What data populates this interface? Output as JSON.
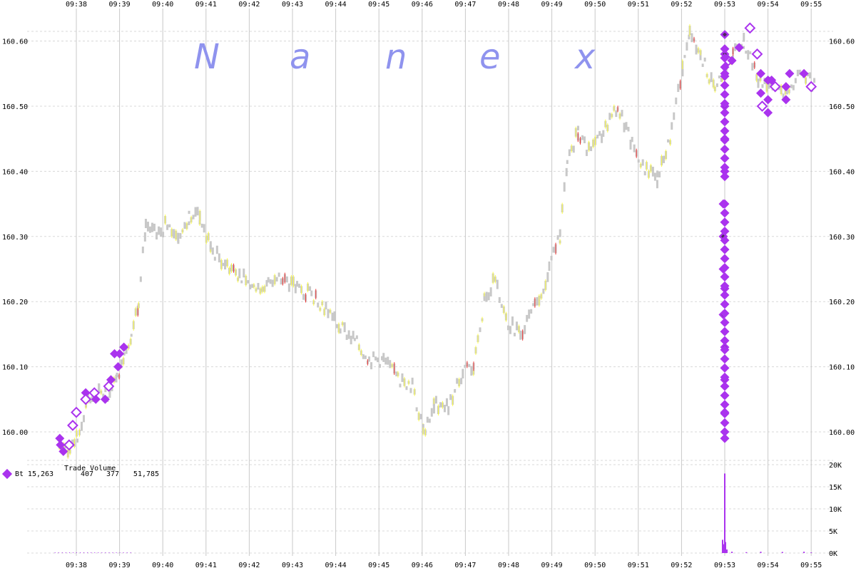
{
  "watermark": {
    "letters": [
      "N",
      "a",
      "n",
      "e",
      "x"
    ]
  },
  "legend": {
    "exchange": "Bt",
    "trade_volume_label": "Trade Volume",
    "values": [
      "15,263",
      "407",
      "377",
      "51,785"
    ]
  },
  "colors": {
    "marker_fill": "#aa33ee",
    "marker_dark": "#4a2a5a",
    "price_bar": "#c8c8c8",
    "price_tick_up": "#ffff44",
    "price_tick_down": "#ee3333",
    "watermark": "#8f93ee",
    "grid_vertical": "#c8c8c8",
    "grid_horizontal": "#d8d8d8"
  },
  "chart_data": {
    "type": "line",
    "title": "",
    "xlabel": "",
    "ylabel": "",
    "x_ticks": [
      "09:38",
      "09:39",
      "09:40",
      "09:41",
      "09:42",
      "09:43",
      "09:44",
      "09:45",
      "09:46",
      "09:47",
      "09:48",
      "09:49",
      "09:50",
      "09:51",
      "09:52",
      "09:53",
      "09:54",
      "09:55"
    ],
    "y_ticks": [
      "160.00",
      "160.10",
      "160.20",
      "160.30",
      "160.40",
      "160.50",
      "160.60"
    ],
    "y_range": [
      159.97,
      160.63
    ],
    "volume_ticks": [
      "0K",
      "5K",
      "10K",
      "15K",
      "20K"
    ],
    "volume_range": [
      0,
      20000
    ],
    "grid": true,
    "series": [
      {
        "kind": "price",
        "points": [
          [
            "09:37:35",
            159.98
          ],
          [
            "09:37:50",
            159.97
          ],
          [
            "09:38:00",
            159.99
          ],
          [
            "09:38:15",
            160.05
          ],
          [
            "09:38:30",
            160.06
          ],
          [
            "09:38:45",
            160.06
          ],
          [
            "09:38:55",
            160.08
          ],
          [
            "09:39:05",
            160.12
          ],
          [
            "09:39:15",
            160.15
          ],
          [
            "09:39:25",
            160.2
          ],
          [
            "09:39:35",
            160.32
          ],
          [
            "09:39:50",
            160.3
          ],
          [
            "09:40:05",
            160.32
          ],
          [
            "09:40:20",
            160.3
          ],
          [
            "09:40:35",
            160.33
          ],
          [
            "09:40:50",
            160.33
          ],
          [
            "09:41:05",
            160.28
          ],
          [
            "09:41:25",
            160.26
          ],
          [
            "09:41:45",
            160.24
          ],
          [
            "09:42:05",
            160.22
          ],
          [
            "09:42:25",
            160.23
          ],
          [
            "09:42:45",
            160.24
          ],
          [
            "09:43:05",
            160.22
          ],
          [
            "09:43:25",
            160.21
          ],
          [
            "09:43:45",
            160.19
          ],
          [
            "09:44:05",
            160.16
          ],
          [
            "09:44:25",
            160.14
          ],
          [
            "09:44:45",
            160.11
          ],
          [
            "09:45:05",
            160.11
          ],
          [
            "09:45:25",
            160.08
          ],
          [
            "09:45:45",
            160.07
          ],
          [
            "09:46:00",
            160.0
          ],
          [
            "09:46:15",
            160.04
          ],
          [
            "09:46:35",
            160.04
          ],
          [
            "09:46:55",
            160.09
          ],
          [
            "09:47:10",
            160.1
          ],
          [
            "09:47:25",
            160.2
          ],
          [
            "09:47:40",
            160.24
          ],
          [
            "09:47:55",
            160.17
          ],
          [
            "09:48:15",
            160.15
          ],
          [
            "09:48:35",
            160.19
          ],
          [
            "09:48:55",
            160.25
          ],
          [
            "09:49:10",
            160.3
          ],
          [
            "09:49:20",
            160.42
          ],
          [
            "09:49:35",
            160.46
          ],
          [
            "09:49:50",
            160.43
          ],
          [
            "09:50:10",
            160.46
          ],
          [
            "09:50:30",
            160.5
          ],
          [
            "09:50:50",
            160.44
          ],
          [
            "09:51:10",
            160.4
          ],
          [
            "09:51:25",
            160.39
          ],
          [
            "09:51:45",
            160.46
          ],
          [
            "09:52:00",
            160.56
          ],
          [
            "09:52:10",
            160.62
          ],
          [
            "09:52:25",
            160.58
          ],
          [
            "09:52:45",
            160.52
          ],
          [
            "09:52:55",
            160.55
          ],
          [
            "09:53:10",
            160.58
          ],
          [
            "09:53:25",
            160.6
          ],
          [
            "09:53:45",
            160.54
          ],
          [
            "09:54:05",
            160.53
          ],
          [
            "09:54:25",
            160.52
          ],
          [
            "09:54:45",
            160.55
          ],
          [
            "09:55:05",
            160.53
          ]
        ]
      },
      {
        "kind": "trades",
        "name": "Bt",
        "points": [
          [
            "09:37:37",
            159.99,
            "filled"
          ],
          [
            "09:37:38",
            159.98,
            "filled"
          ],
          [
            "09:37:42",
            159.97,
            "filled"
          ],
          [
            "09:37:50",
            159.98,
            "hollow"
          ],
          [
            "09:37:55",
            160.01,
            "hollow"
          ],
          [
            "09:38:00",
            160.03,
            "hollow"
          ],
          [
            "09:38:13",
            160.06,
            "filled"
          ],
          [
            "09:38:13",
            160.05,
            "hollow"
          ],
          [
            "09:38:25",
            160.06,
            "hollow"
          ],
          [
            "09:38:27",
            160.05,
            "filled"
          ],
          [
            "09:38:40",
            160.05,
            "filled"
          ],
          [
            "09:38:45",
            160.07,
            "hollow"
          ],
          [
            "09:38:48",
            160.08,
            "filled"
          ],
          [
            "09:38:53",
            160.12,
            "filled"
          ],
          [
            "09:38:58",
            160.1,
            "filled"
          ],
          [
            "09:39:00",
            160.12,
            "filled"
          ],
          [
            "09:39:06",
            160.13,
            "filled"
          ],
          [
            "09:53:00",
            160.61,
            "dark"
          ],
          [
            "09:53:00",
            160.58,
            "dark"
          ],
          [
            "09:53:00",
            160.55,
            "filled"
          ],
          [
            "09:53:00",
            160.5,
            "dark"
          ],
          [
            "09:53:00",
            160.45,
            "dark"
          ],
          [
            "09:53:00",
            160.4,
            "filled"
          ],
          [
            "09:52:58",
            160.35,
            "dark"
          ],
          [
            "09:52:58",
            160.3,
            "dark"
          ],
          [
            "09:52:58",
            160.25,
            "filled"
          ],
          [
            "09:53:00",
            160.22,
            "dark"
          ],
          [
            "09:52:58",
            160.18,
            "dark"
          ],
          [
            "09:53:00",
            160.13,
            "dark"
          ],
          [
            "09:53:00",
            160.08,
            "dark"
          ],
          [
            "09:53:00",
            160.03,
            "dark"
          ],
          [
            "09:53:00",
            159.99,
            "filled"
          ],
          [
            "09:53:05",
            160.57,
            "hollow"
          ],
          [
            "09:53:10",
            160.57,
            "filled"
          ],
          [
            "09:53:20",
            160.59,
            "filled"
          ],
          [
            "09:53:35",
            160.62,
            "hollow"
          ],
          [
            "09:53:45",
            160.58,
            "hollow"
          ],
          [
            "09:53:50",
            160.55,
            "filled"
          ],
          [
            "09:53:50",
            160.52,
            "filled"
          ],
          [
            "09:53:52",
            160.5,
            "hollow"
          ],
          [
            "09:54:00",
            160.54,
            "filled"
          ],
          [
            "09:54:00",
            160.51,
            "filled"
          ],
          [
            "09:54:00",
            160.49,
            "filled"
          ],
          [
            "09:54:05",
            160.54,
            "filled"
          ],
          [
            "09:54:10",
            160.53,
            "hollow"
          ],
          [
            "09:54:25",
            160.51,
            "filled"
          ],
          [
            "09:54:25",
            160.53,
            "filled"
          ],
          [
            "09:54:30",
            160.55,
            "filled"
          ],
          [
            "09:54:50",
            160.55,
            "filled"
          ],
          [
            "09:55:00",
            160.53,
            "hollow"
          ]
        ]
      },
      {
        "kind": "volume",
        "points": [
          [
            "09:52:57",
            3000
          ],
          [
            "09:52:58",
            1500
          ],
          [
            "09:52:59",
            2000
          ],
          [
            "09:53:00",
            18000
          ],
          [
            "09:53:01",
            2500
          ],
          [
            "09:53:03",
            800
          ],
          [
            "09:53:10",
            300
          ],
          [
            "09:53:30",
            200
          ],
          [
            "09:53:50",
            300
          ],
          [
            "09:54:20",
            250
          ],
          [
            "09:54:50",
            300
          ],
          [
            "09:55:00",
            150
          ]
        ]
      }
    ]
  }
}
